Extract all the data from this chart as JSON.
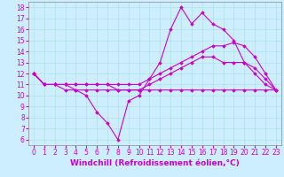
{
  "background_color": "#cceeff",
  "line_color": "#cc00cc",
  "marker": "D",
  "markersize": 1.8,
  "linewidth": 0.8,
  "xlabel": "Windchill (Refroidissement éolien,°C)",
  "xlabel_fontsize": 6.5,
  "xlim": [
    -0.5,
    23.5
  ],
  "ylim": [
    5.5,
    18.5
  ],
  "xticks": [
    0,
    1,
    2,
    3,
    4,
    5,
    6,
    7,
    8,
    9,
    10,
    11,
    12,
    13,
    14,
    15,
    16,
    17,
    18,
    19,
    20,
    21,
    22,
    23
  ],
  "yticks": [
    6,
    7,
    8,
    9,
    10,
    11,
    12,
    13,
    14,
    15,
    16,
    17,
    18
  ],
  "tick_fontsize": 5.5,
  "series": [
    [
      12.0,
      11.0,
      11.0,
      10.5,
      10.5,
      10.0,
      8.5,
      7.5,
      6.0,
      9.5,
      10.0,
      11.5,
      13.0,
      16.0,
      18.0,
      16.5,
      17.5,
      16.5,
      16.0,
      15.0,
      13.0,
      12.0,
      11.0,
      10.5
    ],
    [
      12.0,
      11.0,
      11.0,
      11.0,
      11.0,
      11.0,
      11.0,
      11.0,
      11.0,
      11.0,
      11.0,
      11.5,
      12.0,
      12.5,
      13.0,
      13.5,
      14.0,
      14.5,
      14.5,
      14.8,
      14.5,
      13.5,
      12.0,
      10.5
    ],
    [
      12.0,
      11.0,
      11.0,
      11.0,
      10.5,
      10.5,
      10.5,
      10.5,
      10.5,
      10.5,
      10.5,
      11.0,
      11.5,
      12.0,
      12.5,
      13.0,
      13.5,
      13.5,
      13.0,
      13.0,
      13.0,
      12.5,
      11.5,
      10.5
    ],
    [
      12.0,
      11.0,
      11.0,
      11.0,
      11.0,
      11.0,
      11.0,
      11.0,
      10.5,
      10.5,
      10.5,
      10.5,
      10.5,
      10.5,
      10.5,
      10.5,
      10.5,
      10.5,
      10.5,
      10.5,
      10.5,
      10.5,
      10.5,
      10.5
    ]
  ]
}
